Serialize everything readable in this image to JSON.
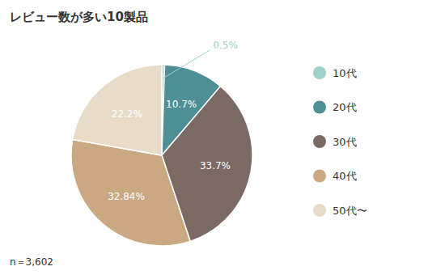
{
  "chart_data": {
    "type": "pie",
    "title": "レビュー数が多い10製品",
    "annotations": [
      "n＝3,602"
    ],
    "categories": [
      "10代",
      "20代",
      "30代",
      "40代",
      "50代〜"
    ],
    "values": [
      0.5,
      10.7,
      33.7,
      32.84,
      22.2
    ],
    "value_labels": [
      "0.5%",
      "10.7%",
      "33.7%",
      "32.84%",
      "22.2%"
    ],
    "data_labels": true,
    "colors": [
      "#9ecfca",
      "#4e8f96",
      "#7a6a63",
      "#c9a882",
      "#e8dcc8"
    ],
    "legend": "right"
  }
}
